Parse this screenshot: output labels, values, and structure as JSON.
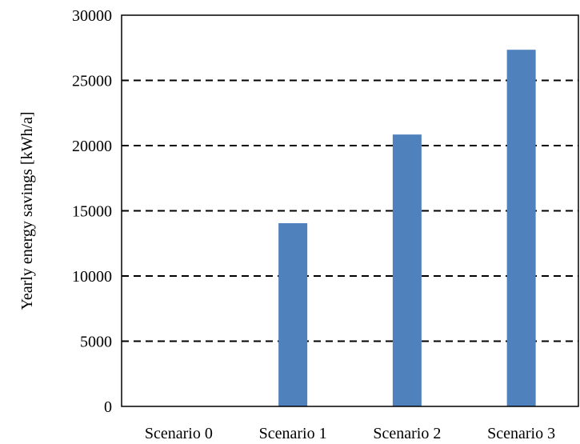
{
  "chart_data": {
    "type": "bar",
    "title": "",
    "xlabel": "",
    "ylabel": "Yearly energy savings [kWh/a]",
    "categories": [
      "Scenario 0",
      "Scenario 1",
      "Scenario 2",
      "Scenario 3"
    ],
    "values": [
      0,
      14050,
      20850,
      27350
    ],
    "ylim": [
      0,
      30000
    ],
    "yticks": [
      "0",
      "5000",
      "10000",
      "15000",
      "20000",
      "25000",
      "30000"
    ],
    "grid": "horizontal dashed",
    "legend": "none",
    "bar_color": "#4f81bd",
    "grid_color": "#000000",
    "axis_color": "#000000"
  }
}
